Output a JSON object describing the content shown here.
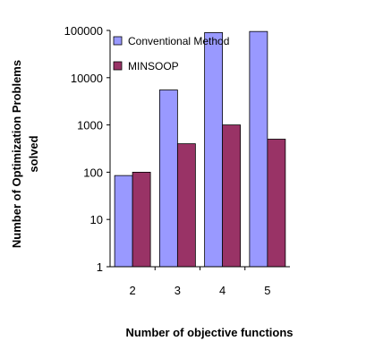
{
  "chart_data": {
    "type": "bar",
    "title": "",
    "xlabel": "Number of objective functions",
    "ylabel_lines": [
      "Number of Optimization Problems",
      "solved"
    ],
    "categories": [
      "2",
      "3",
      "4",
      "5"
    ],
    "y_scale": "log",
    "ylim": [
      1,
      100000
    ],
    "y_ticks": [
      "1",
      "10",
      "100",
      "1000",
      "10000",
      "100000"
    ],
    "y_tick_values": [
      1,
      10,
      100,
      1000,
      10000,
      100000
    ],
    "grid": false,
    "legend_position": "top-left",
    "series": [
      {
        "name": "Conventional Method",
        "color": "#9999FF",
        "values": [
          85,
          5500,
          90000,
          95000
        ]
      },
      {
        "name": "MINSOOP",
        "color": "#993366",
        "values": [
          100,
          400,
          1000,
          500
        ]
      }
    ]
  }
}
